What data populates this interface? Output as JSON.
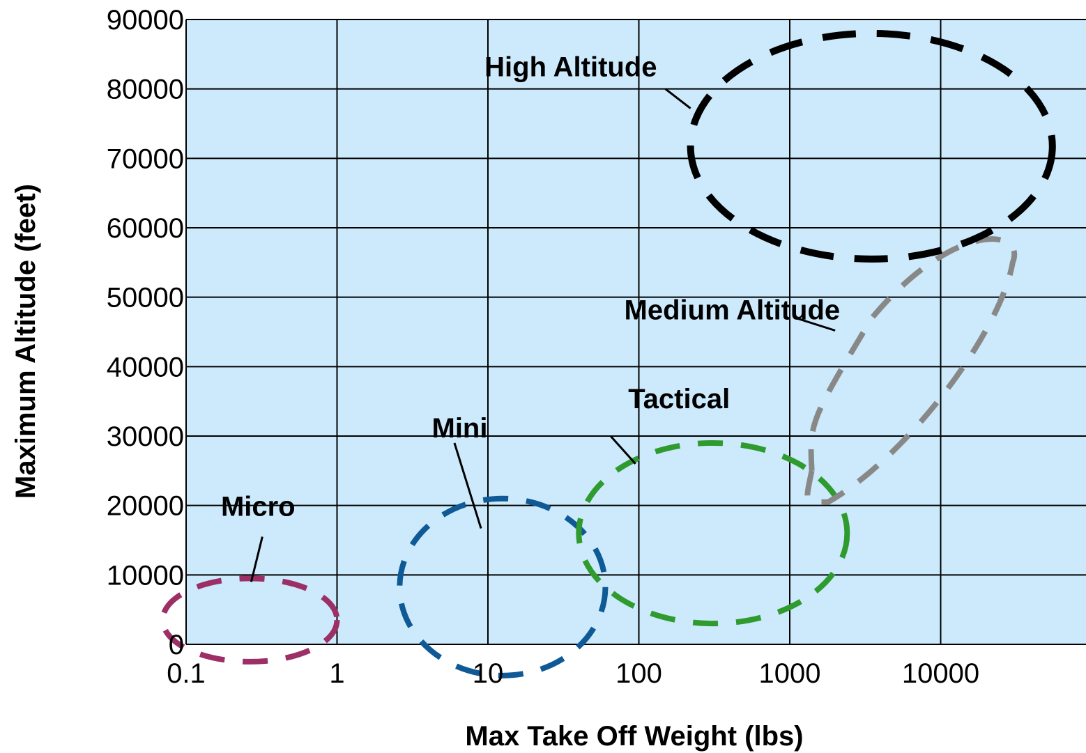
{
  "chart_data": {
    "type": "scatter",
    "title": "",
    "xlabel": "Max Take Off Weight (lbs)",
    "ylabel": "Maximum Altitude (feet)",
    "x_scale": "log",
    "xlim": [
      0.1,
      70000
    ],
    "ylim": [
      0,
      90000
    ],
    "x_ticks": [
      0.1,
      1,
      10,
      100,
      1000,
      10000
    ],
    "x_tick_labels": [
      "0.1",
      "1",
      "10",
      "100",
      "1000",
      "10000"
    ],
    "y_ticks": [
      0,
      10000,
      20000,
      30000,
      40000,
      50000,
      60000,
      70000,
      80000,
      90000
    ],
    "y_tick_labels": [
      "0",
      "10000",
      "20000",
      "30000",
      "40000",
      "50000",
      "60000",
      "70000",
      "80000",
      "90000"
    ],
    "grid": true,
    "plot_background": "#cdeafc",
    "regions": [
      {
        "name": "Micro",
        "color": "#9c2f66",
        "shape": "dashed-ellipse",
        "center": [
          0.28,
          4200
        ],
        "weight_range": [
          0.07,
          1.0
        ],
        "altitude_range": [
          -2500,
          9500
        ],
        "label": "Micro",
        "label_at": [
          0.3,
          18500
        ],
        "pointer": [
          [
            0.32,
            15500
          ],
          [
            0.27,
            9000
          ]
        ]
      },
      {
        "name": "Mini",
        "color": "#0f5a96",
        "shape": "dashed-ellipse",
        "center": [
          15,
          6000
        ],
        "weight_range": [
          2.6,
          60
        ],
        "altitude_range": [
          -4500,
          21000
        ],
        "label": "Mini",
        "label_at": [
          6.5,
          29800
        ],
        "pointer": [
          [
            6.0,
            29000
          ],
          [
            9.0,
            16700
          ]
        ]
      },
      {
        "name": "Tactical",
        "color": "#2f9b2f",
        "shape": "dashed-ellipse",
        "center": [
          350,
          16000
        ],
        "weight_range": [
          40,
          2400
        ],
        "altitude_range": [
          3000,
          29000
        ],
        "label": "Tactical",
        "label_at": [
          85,
          34000
        ],
        "pointer": [
          [
            65,
            30000
          ],
          [
            95,
            26000
          ]
        ]
      },
      {
        "name": "Medium Altitude",
        "color": "#888888",
        "shape": "dashed-loop",
        "label": "Medium Altitude",
        "label_at": [
          80,
          46800
        ],
        "pointer": [
          [
            1100,
            47000
          ],
          [
            2000,
            45200
          ]
        ]
      },
      {
        "name": "High Altitude",
        "color": "#000000",
        "shape": "dashed-ellipse",
        "center": [
          3200,
          72000
        ],
        "weight_range": [
          220,
          55000
        ],
        "altitude_range": [
          55500,
          88000
        ],
        "label": "High Altitude",
        "label_at": [
          9.5,
          81800
        ],
        "pointer": [
          [
            150,
            80000
          ],
          [
            220,
            77200
          ]
        ]
      }
    ]
  }
}
